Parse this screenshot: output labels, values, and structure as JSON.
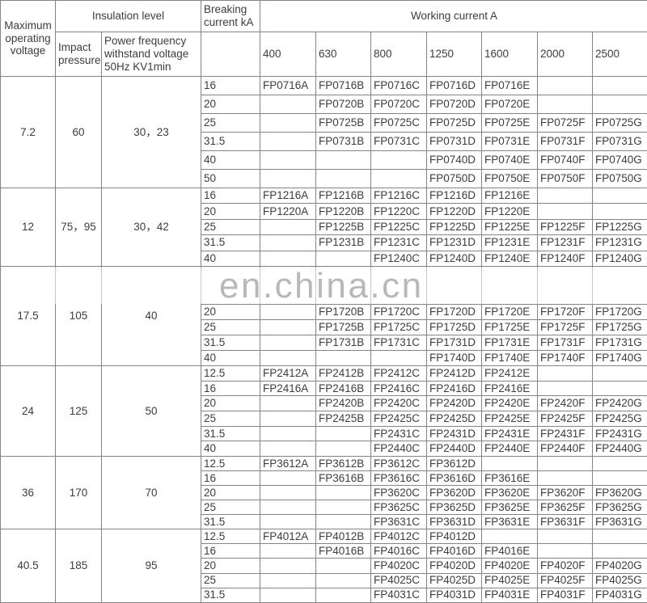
{
  "watermark": {
    "text": "en.china.cn"
  },
  "table": {
    "header": {
      "max_voltage": "Maximum operating voltage",
      "insulation_level": "Insulation level",
      "impact_pressure": "Impact pressure",
      "power_freq_withstand": "Power frequency withstand voltage 50Hz KV1min",
      "breaking_current": "Breaking current kA",
      "working_current": "Working current A",
      "current_columns": [
        "400",
        "630",
        "800",
        "1250",
        "1600",
        "2000",
        "2500"
      ]
    },
    "blocks": [
      {
        "voltage": "7.2",
        "impact": "60",
        "power_freq": "30，23",
        "rows": [
          {
            "ka": "16",
            "cells": [
              "FP0716A",
              "FP0716B",
              "FP0716C",
              "FP0716D",
              "FP0716E",
              "",
              ""
            ]
          },
          {
            "ka": "20",
            "cells": [
              "",
              "FP0720B",
              "FP0720C",
              "FP0720D",
              "FP0720E",
              "",
              ""
            ]
          },
          {
            "ka": "25",
            "cells": [
              "",
              "FP0725B",
              "FP0725C",
              "FP0725D",
              "FP0725E",
              "FP0725F",
              "FP0725G"
            ]
          },
          {
            "ka": "31.5",
            "cells": [
              "",
              "FP0731B",
              "FP0731C",
              "FP0731D",
              "FP0731E",
              "FP0731F",
              "FP0731G"
            ]
          },
          {
            "ka": "40",
            "cells": [
              "",
              "",
              "",
              "FP0740D",
              "FP0740E",
              "FP0740F",
              "FP0740G"
            ]
          },
          {
            "ka": "50",
            "cells": [
              "",
              "",
              "",
              "FP0750D",
              "FP0750E",
              "FP0750F",
              "FP0750G"
            ]
          }
        ]
      },
      {
        "voltage": "12",
        "impact": "75，95",
        "power_freq": "30，42",
        "rows": [
          {
            "ka": "16",
            "cells": [
              "FP1216A",
              "FP1216B",
              "FP1216C",
              "FP1216D",
              "FP1216E",
              "",
              ""
            ]
          },
          {
            "ka": "20",
            "cells": [
              "FP1220A",
              "FP1220B",
              "FP1220C",
              "FP1220D",
              "FP1220E",
              "",
              ""
            ]
          },
          {
            "ka": "25",
            "cells": [
              "",
              "FP1225B",
              "FP1225C",
              "FP1225D",
              "FP1225E",
              "FP1225F",
              "FP1225G"
            ]
          },
          {
            "ka": "31.5",
            "cells": [
              "",
              "FP1231B",
              "FP1231C",
              "FP1231D",
              "FP1231E",
              "FP1231F",
              "FP1231G"
            ]
          },
          {
            "ka": "40",
            "cells": [
              "",
              "",
              "FP1240C",
              "FP1240D",
              "FP1240E",
              "FP1240F",
              "FP1240G"
            ]
          }
        ]
      },
      {
        "voltage": "17.5",
        "impact": "105",
        "power_freq": "40",
        "rows": [
          {
            "ka": "",
            "blank": true,
            "cells": [
              "",
              "",
              "",
              "",
              "",
              "",
              ""
            ]
          },
          {
            "ka": "20",
            "cells": [
              "",
              "FP1720B",
              "FP1720C",
              "FP1720D",
              "FP1720E",
              "FP1720F",
              "FP1720G"
            ]
          },
          {
            "ka": "25",
            "cells": [
              "",
              "FP1725B",
              "FP1725C",
              "FP1725D",
              "FP1725E",
              "FP1725F",
              "FP1725G"
            ]
          },
          {
            "ka": "31.5",
            "cells": [
              "",
              "FP1731B",
              "FP1731C",
              "FP1731D",
              "FP1731E",
              "FP1731F",
              "FP1731G"
            ]
          },
          {
            "ka": "40",
            "cells": [
              "",
              "",
              "",
              "FP1740D",
              "FP1740E",
              "FP1740F",
              "FP1740G"
            ]
          }
        ]
      },
      {
        "voltage": "24",
        "impact": "125",
        "power_freq": "50",
        "rows": [
          {
            "ka": "12.5",
            "cells": [
              "FP2412A",
              "FP2412B",
              "FP2412C",
              "FP2412D",
              "FP2412E",
              "",
              ""
            ]
          },
          {
            "ka": "16",
            "cells": [
              "FP2416A",
              "FP2416B",
              "FP2416C",
              "FP2416D",
              "FP2416E",
              "",
              ""
            ]
          },
          {
            "ka": "20",
            "cells": [
              "",
              "FP2420B",
              "FP2420C",
              "FP2420D",
              "FP2420E",
              "FP2420F",
              "FP2420G"
            ]
          },
          {
            "ka": "25",
            "cells": [
              "",
              "FP2425B",
              "FP2425C",
              "FP2425D",
              "FP2425E",
              "FP2425F",
              "FP2425G"
            ]
          },
          {
            "ka": "31.5",
            "cells": [
              "",
              "",
              "FP2431C",
              "FP2431D",
              "FP2431E",
              "FP2431F",
              "FP2431G"
            ]
          },
          {
            "ka": "40",
            "cells": [
              "",
              "",
              "FP2440C",
              "FP2440D",
              "FP2440E",
              "FP2440F",
              "FP2440G"
            ]
          }
        ]
      },
      {
        "voltage": "36",
        "impact": "170",
        "power_freq": "70",
        "rows": [
          {
            "ka": "12.5",
            "cells": [
              "FP3612A",
              "FP3612B",
              "FP3612C",
              "FP3612D",
              "",
              "",
              ""
            ]
          },
          {
            "ka": "16",
            "cells": [
              "",
              "FP3616B",
              "FP3616C",
              "FP3616D",
              "FP3616E",
              "",
              ""
            ]
          },
          {
            "ka": "20",
            "cells": [
              "",
              "",
              "FP3620C",
              "FP3620D",
              "FP3620E",
              "FP3620F",
              "FP3620G"
            ]
          },
          {
            "ka": "25",
            "cells": [
              "",
              "",
              "FP3625C",
              "FP3625D",
              "FP3625E",
              "FP3625F",
              "FP3625G"
            ]
          },
          {
            "ka": "31.5",
            "cells": [
              "",
              "",
              "FP3631C",
              "FP3631D",
              "FP3631E",
              "FP3631F",
              "FP3631G"
            ]
          }
        ]
      },
      {
        "voltage": "40.5",
        "impact": "185",
        "power_freq": "95",
        "rows": [
          {
            "ka": "12.5",
            "cells": [
              "FP4012A",
              "FP4012B",
              "FP4012C",
              "FP4012D",
              "",
              "",
              ""
            ]
          },
          {
            "ka": "16",
            "cells": [
              "",
              "FP4016B",
              "FP4016C",
              "FP4016D",
              "FP4016E",
              "",
              ""
            ]
          },
          {
            "ka": "20",
            "cells": [
              "",
              "",
              "FP4020C",
              "FP4020D",
              "FP4020E",
              "FP4020F",
              "FP4020G"
            ]
          },
          {
            "ka": "25",
            "cells": [
              "",
              "",
              "FP4025C",
              "FP4025D",
              "FP4025E",
              "FP4025F",
              "FP4025G"
            ]
          },
          {
            "ka": "31.5",
            "cells": [
              "",
              "",
              "FP4031C",
              "FP4031D",
              "FP4031E",
              "FP4031F",
              "FP4031G"
            ]
          }
        ]
      }
    ]
  }
}
